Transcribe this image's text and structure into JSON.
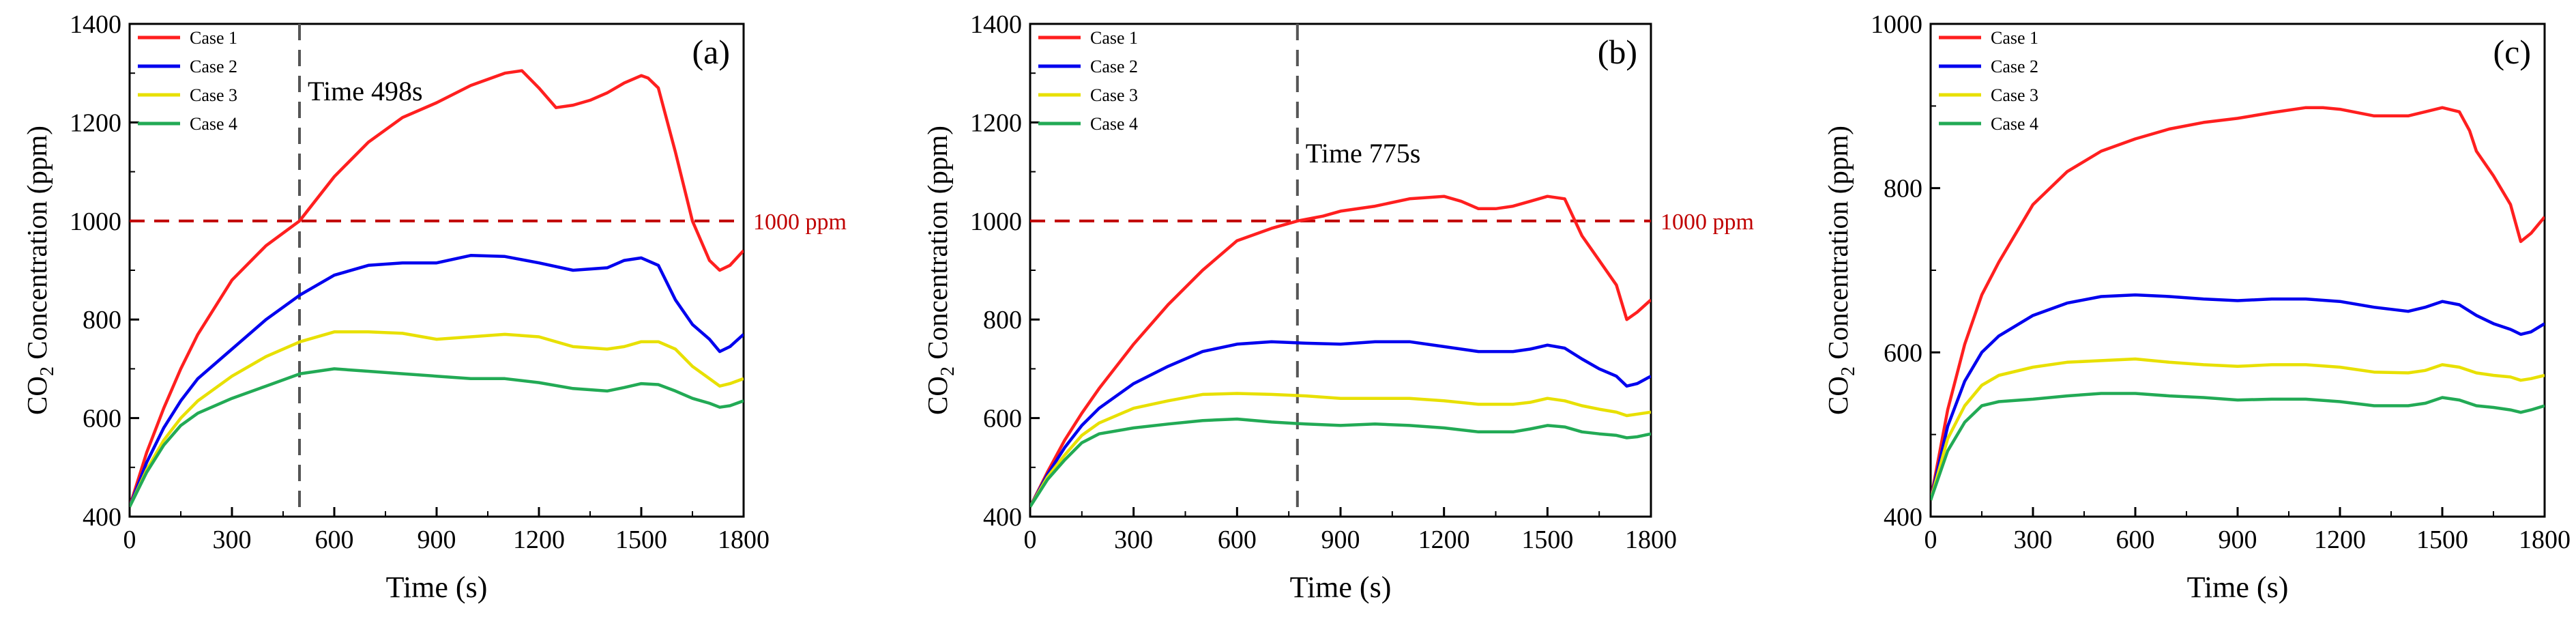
{
  "chart_data": [
    {
      "type": "line",
      "panel_label": "(a)",
      "xlabel": "Time (s)",
      "ylabel_main": "CO",
      "ylabel_sub": "2",
      "ylabel_rest": " Concentration (ppm)",
      "xlim": [
        0,
        1800
      ],
      "ylim": [
        400,
        1400
      ],
      "xticks": [
        "0",
        "300",
        "600",
        "900",
        "1200",
        "1500",
        "1800"
      ],
      "yticks": [
        "400",
        "600",
        "800",
        "1000",
        "1200",
        "1400"
      ],
      "reference_line": {
        "y": 1000,
        "label": "1000 ppm",
        "color": "#c00000"
      },
      "vline": {
        "x": 498,
        "label": "Time 498s"
      },
      "legend_position": "top-left",
      "series": [
        {
          "name": "Case 1",
          "color": "#ff1f1f",
          "x": [
            0,
            50,
            100,
            150,
            200,
            300,
            400,
            498,
            600,
            700,
            800,
            900,
            1000,
            1100,
            1150,
            1200,
            1250,
            1300,
            1350,
            1400,
            1450,
            1500,
            1520,
            1550,
            1600,
            1650,
            1700,
            1730,
            1760,
            1800
          ],
          "y": [
            420,
            530,
            620,
            700,
            770,
            880,
            950,
            1000,
            1090,
            1160,
            1210,
            1240,
            1275,
            1300,
            1305,
            1270,
            1230,
            1235,
            1245,
            1260,
            1280,
            1295,
            1290,
            1270,
            1140,
            1000,
            920,
            900,
            910,
            940
          ]
        },
        {
          "name": "Case 2",
          "color": "#0000ee",
          "x": [
            0,
            50,
            100,
            150,
            200,
            300,
            400,
            500,
            600,
            700,
            800,
            900,
            1000,
            1100,
            1200,
            1300,
            1400,
            1450,
            1500,
            1550,
            1600,
            1650,
            1700,
            1730,
            1760,
            1800
          ],
          "y": [
            420,
            510,
            580,
            635,
            680,
            740,
            800,
            850,
            890,
            910,
            915,
            915,
            930,
            928,
            915,
            900,
            905,
            920,
            925,
            910,
            840,
            790,
            760,
            735,
            745,
            770
          ]
        },
        {
          "name": "Case 3",
          "color": "#e8e000",
          "x": [
            0,
            50,
            100,
            150,
            200,
            300,
            400,
            500,
            600,
            700,
            800,
            900,
            1000,
            1100,
            1200,
            1300,
            1400,
            1450,
            1500,
            1550,
            1600,
            1650,
            1700,
            1730,
            1760,
            1800
          ],
          "y": [
            420,
            495,
            555,
            600,
            635,
            685,
            725,
            755,
            775,
            775,
            772,
            760,
            765,
            770,
            765,
            745,
            740,
            745,
            755,
            755,
            740,
            705,
            680,
            665,
            670,
            680
          ]
        },
        {
          "name": "Case 4",
          "color": "#22aa55",
          "x": [
            0,
            50,
            100,
            150,
            200,
            300,
            400,
            500,
            600,
            700,
            800,
            900,
            1000,
            1100,
            1200,
            1300,
            1400,
            1450,
            1500,
            1550,
            1600,
            1650,
            1700,
            1730,
            1760,
            1800
          ],
          "y": [
            420,
            490,
            545,
            585,
            610,
            640,
            665,
            690,
            700,
            695,
            690,
            685,
            680,
            680,
            672,
            660,
            655,
            662,
            670,
            668,
            655,
            640,
            630,
            622,
            625,
            635
          ]
        }
      ]
    },
    {
      "type": "line",
      "panel_label": "(b)",
      "xlabel": "Time (s)",
      "ylabel_main": "CO",
      "ylabel_sub": "2",
      "ylabel_rest": " Concentration (ppm)",
      "xlim": [
        0,
        1800
      ],
      "ylim": [
        400,
        1400
      ],
      "xticks": [
        "0",
        "300",
        "600",
        "900",
        "1200",
        "1500",
        "1800"
      ],
      "yticks": [
        "400",
        "600",
        "800",
        "1000",
        "1200",
        "1400"
      ],
      "reference_line": {
        "y": 1000,
        "label": "1000 ppm",
        "color": "#c00000"
      },
      "vline": {
        "x": 775,
        "label": "Time 775s"
      },
      "legend_position": "top-left",
      "series": [
        {
          "name": "Case 1",
          "color": "#ff1f1f",
          "x": [
            0,
            50,
            100,
            150,
            200,
            300,
            400,
            500,
            600,
            700,
            775,
            850,
            900,
            1000,
            1100,
            1200,
            1250,
            1300,
            1350,
            1400,
            1450,
            1500,
            1550,
            1580,
            1600,
            1650,
            1700,
            1730,
            1760,
            1800
          ],
          "y": [
            420,
            490,
            555,
            610,
            660,
            750,
            830,
            900,
            960,
            985,
            1000,
            1010,
            1020,
            1030,
            1045,
            1050,
            1040,
            1025,
            1025,
            1030,
            1040,
            1050,
            1045,
            1000,
            970,
            920,
            870,
            800,
            815,
            840
          ]
        },
        {
          "name": "Case 2",
          "color": "#0000ee",
          "x": [
            0,
            50,
            100,
            150,
            200,
            300,
            400,
            500,
            600,
            700,
            800,
            900,
            1000,
            1100,
            1200,
            1300,
            1400,
            1450,
            1500,
            1550,
            1600,
            1650,
            1700,
            1730,
            1760,
            1800
          ],
          "y": [
            420,
            485,
            540,
            585,
            620,
            670,
            705,
            735,
            750,
            755,
            752,
            750,
            755,
            755,
            745,
            735,
            735,
            740,
            748,
            742,
            720,
            700,
            685,
            665,
            670,
            685
          ]
        },
        {
          "name": "Case 3",
          "color": "#e8e000",
          "x": [
            0,
            50,
            100,
            150,
            200,
            300,
            400,
            500,
            600,
            700,
            800,
            900,
            1000,
            1100,
            1200,
            1300,
            1400,
            1450,
            1500,
            1550,
            1600,
            1650,
            1700,
            1730,
            1760,
            1800
          ],
          "y": [
            420,
            480,
            525,
            565,
            590,
            620,
            635,
            648,
            650,
            648,
            645,
            640,
            640,
            640,
            635,
            628,
            628,
            632,
            640,
            635,
            625,
            618,
            612,
            605,
            608,
            612
          ]
        },
        {
          "name": "Case 4",
          "color": "#22aa55",
          "x": [
            0,
            50,
            100,
            150,
            200,
            300,
            400,
            500,
            600,
            700,
            800,
            900,
            1000,
            1100,
            1200,
            1300,
            1400,
            1450,
            1500,
            1550,
            1600,
            1650,
            1700,
            1730,
            1760,
            1800
          ],
          "y": [
            420,
            475,
            515,
            550,
            568,
            580,
            588,
            595,
            598,
            592,
            588,
            585,
            588,
            585,
            580,
            572,
            572,
            578,
            585,
            582,
            572,
            568,
            565,
            560,
            562,
            568
          ]
        }
      ]
    },
    {
      "type": "line",
      "panel_label": "(c)",
      "xlabel": "Time (s)",
      "ylabel_main": "CO",
      "ylabel_sub": "2",
      "ylabel_rest": " Concentration (ppm)",
      "xlim": [
        0,
        1800
      ],
      "ylim": [
        400,
        1000
      ],
      "xticks": [
        "0",
        "300",
        "600",
        "900",
        "1200",
        "1500",
        "1800"
      ],
      "yticks": [
        "400",
        "600",
        "800",
        "1000"
      ],
      "reference_line": null,
      "vline": null,
      "legend_position": "top-left",
      "series": [
        {
          "name": "Case 1",
          "color": "#ff1f1f",
          "x": [
            0,
            50,
            100,
            150,
            200,
            300,
            400,
            500,
            600,
            700,
            800,
            900,
            1000,
            1100,
            1150,
            1200,
            1300,
            1400,
            1450,
            1500,
            1550,
            1580,
            1600,
            1650,
            1700,
            1730,
            1760,
            1800
          ],
          "y": [
            420,
            530,
            610,
            670,
            710,
            780,
            820,
            845,
            860,
            872,
            880,
            885,
            892,
            898,
            898,
            896,
            888,
            888,
            893,
            898,
            893,
            870,
            845,
            815,
            780,
            735,
            745,
            765
          ]
        },
        {
          "name": "Case 2",
          "color": "#0000ee",
          "x": [
            0,
            50,
            100,
            150,
            200,
            300,
            400,
            500,
            600,
            700,
            800,
            900,
            1000,
            1100,
            1200,
            1300,
            1400,
            1450,
            1500,
            1550,
            1600,
            1650,
            1700,
            1730,
            1760,
            1800
          ],
          "y": [
            420,
            510,
            565,
            600,
            620,
            645,
            660,
            668,
            670,
            668,
            665,
            663,
            665,
            665,
            662,
            655,
            650,
            655,
            662,
            658,
            645,
            635,
            628,
            622,
            625,
            635
          ]
        },
        {
          "name": "Case 3",
          "color": "#e8e000",
          "x": [
            0,
            50,
            100,
            150,
            200,
            300,
            400,
            500,
            600,
            700,
            800,
            900,
            1000,
            1100,
            1200,
            1300,
            1400,
            1450,
            1500,
            1550,
            1600,
            1650,
            1700,
            1730,
            1760,
            1800
          ],
          "y": [
            420,
            495,
            535,
            560,
            572,
            582,
            588,
            590,
            592,
            588,
            585,
            583,
            585,
            585,
            582,
            576,
            575,
            578,
            585,
            582,
            575,
            572,
            570,
            566,
            568,
            572
          ]
        },
        {
          "name": "Case 4",
          "color": "#22aa55",
          "x": [
            0,
            50,
            100,
            150,
            200,
            300,
            400,
            500,
            600,
            700,
            800,
            900,
            1000,
            1100,
            1200,
            1300,
            1400,
            1450,
            1500,
            1550,
            1600,
            1650,
            1700,
            1730,
            1760,
            1800
          ],
          "y": [
            420,
            480,
            515,
            535,
            540,
            543,
            547,
            550,
            550,
            547,
            545,
            542,
            543,
            543,
            540,
            535,
            535,
            538,
            545,
            542,
            535,
            533,
            530,
            527,
            530,
            535
          ]
        }
      ]
    }
  ]
}
